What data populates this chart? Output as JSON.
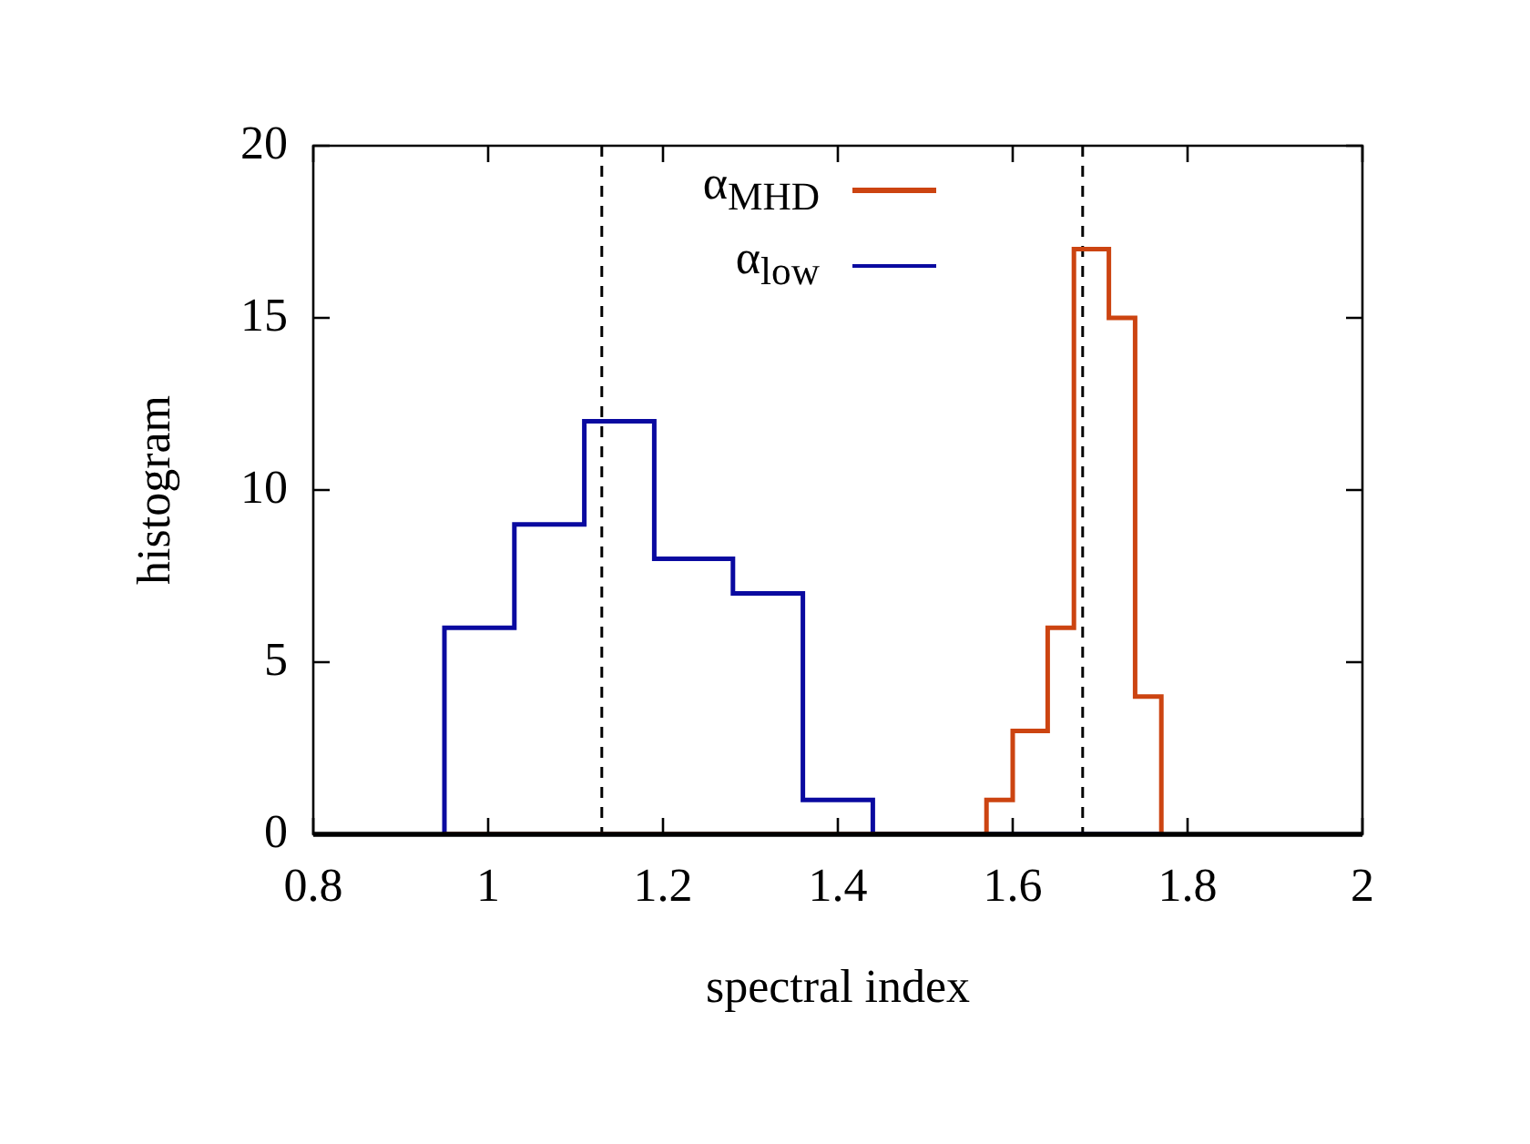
{
  "chart_data": {
    "type": "histogram",
    "xlabel": "spectral index",
    "ylabel": "histogram",
    "series": [
      {
        "name": "α$_{MHD}$",
        "color": "#cc4411",
        "values": [
          0,
          0,
          0,
          0,
          0,
          0,
          0,
          1,
          3,
          6,
          17,
          15,
          4
        ]
      },
      {
        "name": "α$_{low}$",
        "color": "#0a0aa0",
        "values": [
          6,
          9,
          12,
          8,
          7,
          1,
          0,
          0,
          0,
          0,
          0,
          0,
          0
        ]
      }
    ],
    "bins": [
      0.95,
      1.03,
      1.11,
      1.19,
      1.28,
      1.36,
      1.44,
      1.57,
      1.6,
      1.64,
      1.67,
      1.71,
      1.74,
      1.77
    ],
    "xlim": [
      0.8,
      2
    ],
    "xticks": [
      0.8,
      1,
      1.2,
      1.4,
      1.6,
      1.8,
      2
    ],
    "ylim": [
      0,
      20
    ],
    "yticks": [
      0,
      5,
      10,
      15,
      20
    ],
    "ref_lines": [
      {
        "axis": "x",
        "value": 1.13,
        "line_style": "dashed"
      },
      {
        "axis": "x",
        "value": 1.68,
        "line_style": "dashed"
      }
    ],
    "legend": "top right"
  }
}
